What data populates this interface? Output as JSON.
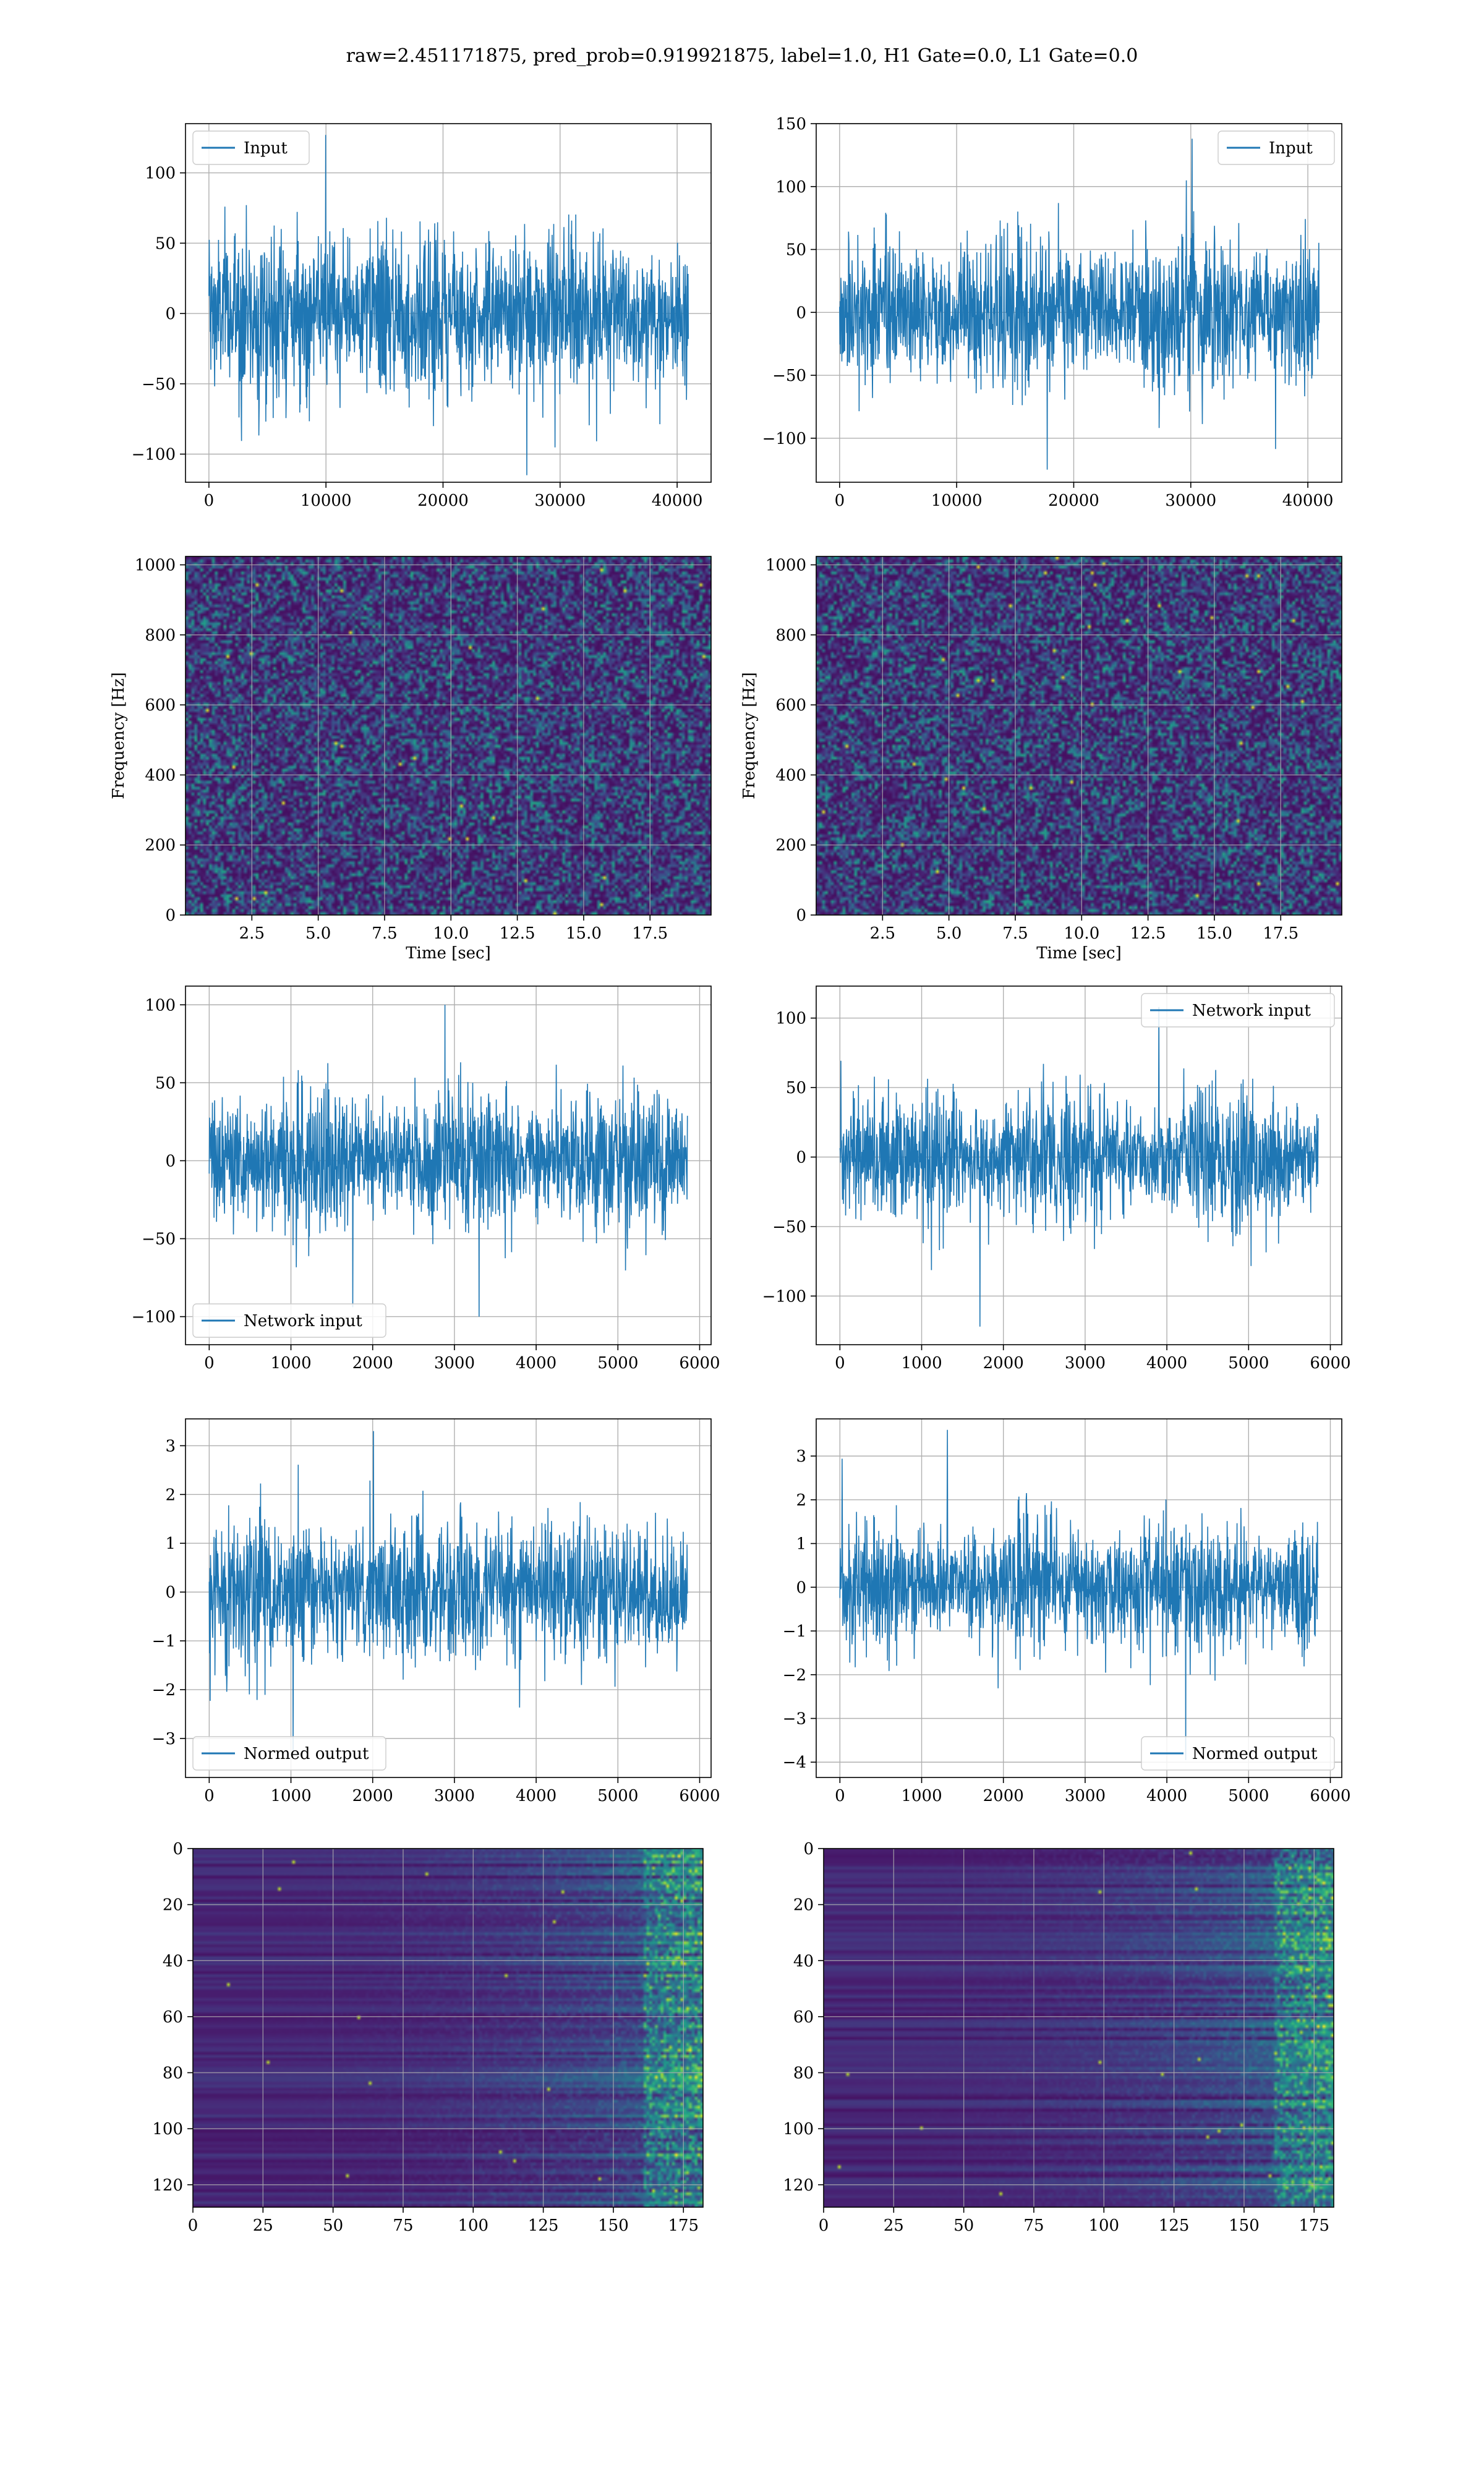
{
  "figure": {
    "suptitle": "raw=2.451171875, pred_prob=0.919921875, label=1.0, H1 Gate=0.0, L1 Gate=0.0"
  },
  "colors": {
    "line": "#1f77b4",
    "grid": "#b0b0b0",
    "viridis_low": "#440154",
    "viridis_high": "#fde725"
  },
  "chart_data": [
    {
      "id": "h1-input",
      "type": "line",
      "series_name": "Input",
      "legend_loc": "upper left",
      "xlim": [
        -2000,
        42900
      ],
      "ylim": [
        -120,
        135
      ],
      "xticks": [
        0,
        10000,
        20000,
        30000,
        40000
      ],
      "xtick_labels": [
        "0",
        "10000",
        "20000",
        "30000",
        "40000"
      ],
      "yticks": [
        -100,
        -50,
        0,
        50,
        100
      ],
      "ytick_labels": [
        "−100",
        "−50",
        "0",
        "50",
        "100"
      ],
      "x_start": 0,
      "x_end": 40960,
      "amp": 28,
      "spike": 127,
      "trough": -115,
      "xlabel": "",
      "ylabel": "",
      "grid": true
    },
    {
      "id": "l1-input",
      "type": "line",
      "series_name": "Input",
      "legend_loc": "upper right",
      "xlim": [
        -2000,
        42900
      ],
      "ylim": [
        -135,
        150
      ],
      "xticks": [
        0,
        10000,
        20000,
        30000,
        40000
      ],
      "xtick_labels": [
        "0",
        "10000",
        "20000",
        "30000",
        "40000"
      ],
      "yticks": [
        -100,
        -50,
        0,
        50,
        100,
        150
      ],
      "ytick_labels": [
        "−100",
        "−50",
        "0",
        "50",
        "100",
        "150"
      ],
      "x_start": 0,
      "x_end": 40960,
      "amp": 28,
      "spike": 138,
      "trough": -125,
      "xlabel": "",
      "ylabel": "",
      "grid": true
    },
    {
      "id": "h1-spectrogram",
      "type": "heatmap",
      "xlim": [
        0,
        19.8
      ],
      "ylim": [
        0,
        1024
      ],
      "xticks": [
        2.5,
        5.0,
        7.5,
        10.0,
        12.5,
        15.0,
        17.5
      ],
      "xtick_labels": [
        "2.5",
        "5.0",
        "7.5",
        "10.0",
        "12.5",
        "15.0",
        "17.5"
      ],
      "yticks": [
        0,
        200,
        400,
        600,
        800,
        1000
      ],
      "ytick_labels": [
        "0",
        "200",
        "400",
        "600",
        "800",
        "1000"
      ],
      "xlabel": "Time [sec]",
      "ylabel": "Frequency [Hz]",
      "grid": true,
      "colormap": "viridis",
      "style": "noise",
      "y_inverted": false
    },
    {
      "id": "l1-spectrogram",
      "type": "heatmap",
      "xlim": [
        0,
        19.8
      ],
      "ylim": [
        0,
        1024
      ],
      "xticks": [
        2.5,
        5.0,
        7.5,
        10.0,
        12.5,
        15.0,
        17.5
      ],
      "xtick_labels": [
        "2.5",
        "5.0",
        "7.5",
        "10.0",
        "12.5",
        "15.0",
        "17.5"
      ],
      "yticks": [
        0,
        200,
        400,
        600,
        800,
        1000
      ],
      "ytick_labels": [
        "0",
        "200",
        "400",
        "600",
        "800",
        "1000"
      ],
      "xlabel": "Time [sec]",
      "ylabel": "Frequency [Hz]",
      "grid": true,
      "colormap": "viridis",
      "style": "noise",
      "y_inverted": false
    },
    {
      "id": "h1-network-input",
      "type": "line",
      "series_name": "Network input",
      "legend_loc": "lower left",
      "xlim": [
        -290,
        6140
      ],
      "ylim": [
        -118,
        112
      ],
      "xticks": [
        0,
        1000,
        2000,
        3000,
        4000,
        5000,
        6000
      ],
      "xtick_labels": [
        "0",
        "1000",
        "2000",
        "3000",
        "4000",
        "5000",
        "6000"
      ],
      "yticks": [
        -100,
        -50,
        0,
        50,
        100
      ],
      "ytick_labels": [
        "−100",
        "−50",
        "0",
        "50",
        "100"
      ],
      "x_start": 0,
      "x_end": 5850,
      "amp": 22,
      "spike": 100,
      "trough": -100,
      "xlabel": "",
      "ylabel": "",
      "grid": true
    },
    {
      "id": "l1-network-input",
      "type": "line",
      "series_name": "Network input",
      "legend_loc": "upper right",
      "xlim": [
        -290,
        6140
      ],
      "ylim": [
        -135,
        123
      ],
      "xticks": [
        0,
        1000,
        2000,
        3000,
        4000,
        5000,
        6000
      ],
      "xtick_labels": [
        "0",
        "1000",
        "2000",
        "3000",
        "4000",
        "5000",
        "6000"
      ],
      "yticks": [
        -100,
        -50,
        0,
        50,
        100
      ],
      "ytick_labels": [
        "−100",
        "−50",
        "0",
        "50",
        "100"
      ],
      "x_start": 0,
      "x_end": 5850,
      "amp": 22,
      "spike": 108,
      "trough": -122,
      "xlabel": "",
      "ylabel": "",
      "grid": true
    },
    {
      "id": "h1-normed-output",
      "type": "line",
      "series_name": "Normed output",
      "legend_loc": "lower left",
      "xlim": [
        -290,
        6140
      ],
      "ylim": [
        -3.8,
        3.55
      ],
      "xticks": [
        0,
        1000,
        2000,
        3000,
        4000,
        5000,
        6000
      ],
      "xtick_labels": [
        "0",
        "1000",
        "2000",
        "3000",
        "4000",
        "5000",
        "6000"
      ],
      "yticks": [
        -3,
        -2,
        -1,
        0,
        1,
        2,
        3
      ],
      "ytick_labels": [
        "−3",
        "−2",
        "−1",
        "0",
        "1",
        "2",
        "3"
      ],
      "x_start": 0,
      "x_end": 5850,
      "amp": 0.7,
      "spike": 3.3,
      "trough": -3.25,
      "xlabel": "",
      "ylabel": "",
      "grid": true
    },
    {
      "id": "l1-normed-output",
      "type": "line",
      "series_name": "Normed output",
      "legend_loc": "lower right",
      "xlim": [
        -290,
        6140
      ],
      "ylim": [
        -4.35,
        3.85
      ],
      "xticks": [
        0,
        1000,
        2000,
        3000,
        4000,
        5000,
        6000
      ],
      "xtick_labels": [
        "0",
        "1000",
        "2000",
        "3000",
        "4000",
        "5000",
        "6000"
      ],
      "yticks": [
        -4,
        -3,
        -2,
        -1,
        0,
        1,
        2,
        3
      ],
      "ytick_labels": [
        "−4",
        "−3",
        "−2",
        "−1",
        "0",
        "1",
        "2",
        "3"
      ],
      "x_start": 0,
      "x_end": 5850,
      "amp": 0.7,
      "spike": 3.6,
      "trough": -3.95,
      "xlabel": "",
      "ylabel": "",
      "grid": true
    },
    {
      "id": "h1-feature-map",
      "type": "heatmap",
      "xlim": [
        0,
        182
      ],
      "ylim": [
        0,
        128
      ],
      "xticks": [
        0,
        25,
        50,
        75,
        100,
        125,
        150,
        175
      ],
      "xtick_labels": [
        "0",
        "25",
        "50",
        "75",
        "100",
        "125",
        "150",
        "175"
      ],
      "yticks": [
        0,
        20,
        40,
        60,
        80,
        100,
        120
      ],
      "ytick_labels": [
        "0",
        "20",
        "40",
        "60",
        "80",
        "100",
        "120"
      ],
      "xlabel": "",
      "ylabel": "",
      "grid": true,
      "colormap": "viridis",
      "style": "stripes",
      "y_inverted": true
    },
    {
      "id": "l1-feature-map",
      "type": "heatmap",
      "xlim": [
        0,
        182
      ],
      "ylim": [
        0,
        128
      ],
      "xticks": [
        0,
        25,
        50,
        75,
        100,
        125,
        150,
        175
      ],
      "xtick_labels": [
        "0",
        "25",
        "50",
        "75",
        "100",
        "125",
        "150",
        "175"
      ],
      "yticks": [
        0,
        20,
        40,
        60,
        80,
        100,
        120
      ],
      "ytick_labels": [
        "0",
        "20",
        "40",
        "60",
        "80",
        "100",
        "120"
      ],
      "xlabel": "",
      "ylabel": "",
      "grid": true,
      "colormap": "viridis",
      "style": "stripes",
      "y_inverted": true
    }
  ]
}
